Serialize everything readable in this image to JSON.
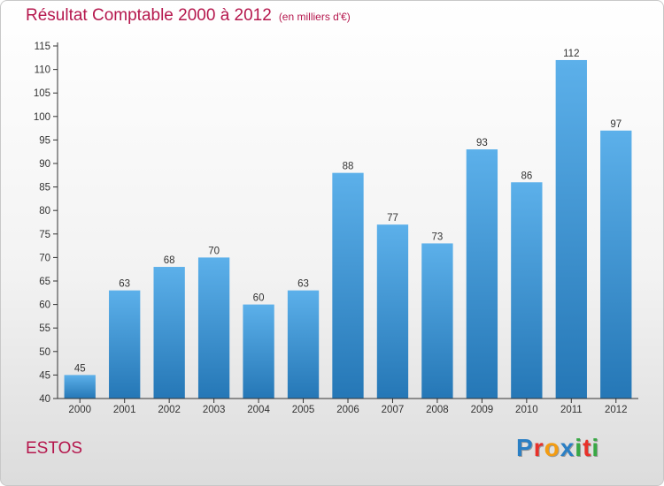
{
  "chart_data": {
    "type": "bar",
    "title": "Résultat Comptable 2000 à 2012",
    "subtitle": "(en milliers d'€)",
    "categories": [
      "2000",
      "2001",
      "2002",
      "2003",
      "2004",
      "2005",
      "2006",
      "2007",
      "2008",
      "2009",
      "2010",
      "2011",
      "2012"
    ],
    "values": [
      45,
      63,
      68,
      70,
      60,
      63,
      88,
      77,
      73,
      93,
      86,
      112,
      97
    ],
    "ylim": [
      40,
      115
    ],
    "yticks": [
      40,
      45,
      50,
      55,
      60,
      65,
      70,
      75,
      80,
      85,
      90,
      95,
      100,
      105,
      110,
      115
    ],
    "grid": false,
    "xlabel": "",
    "ylabel": ""
  },
  "commune": "ESTOS",
  "logo": {
    "letters": [
      "P",
      "r",
      "o",
      "x",
      "i",
      "t",
      "i"
    ]
  },
  "colors": {
    "title": "#b5174d",
    "bar_light": "#5cb0ea",
    "bar_dark": "#2577b6",
    "axis": "#333333",
    "logo_letters": [
      "#2b7fc4",
      "#e8312a",
      "#f39c12",
      "#2b7fc4",
      "#39a845",
      "#e8312a",
      "#39a845"
    ]
  }
}
